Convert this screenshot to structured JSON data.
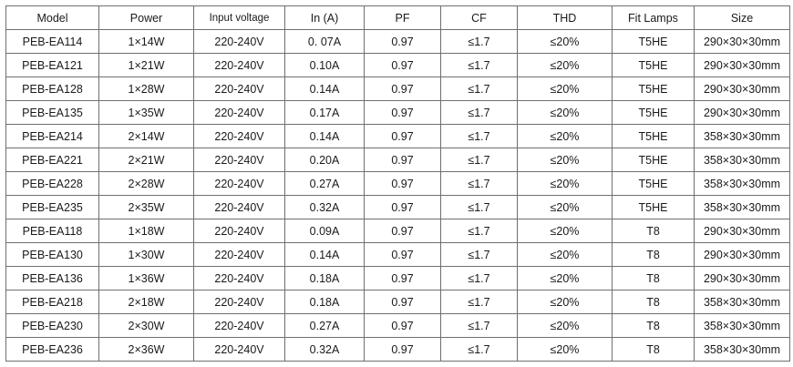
{
  "table": {
    "headers": [
      "Model",
      "Power",
      "Input voltage",
      "In (A)",
      "PF",
      "CF",
      "THD",
      "Fit Lamps",
      "Size"
    ],
    "rows": [
      [
        "PEB-EA114",
        "1×14W",
        "220-240V",
        "0. 07A",
        "0.97",
        "≤1.7",
        "≤20%",
        "T5HE",
        "290×30×30mm"
      ],
      [
        "PEB-EA121",
        "1×21W",
        "220-240V",
        "0.10A",
        "0.97",
        "≤1.7",
        "≤20%",
        "T5HE",
        "290×30×30mm"
      ],
      [
        "PEB-EA128",
        "1×28W",
        "220-240V",
        "0.14A",
        "0.97",
        "≤1.7",
        "≤20%",
        "T5HE",
        "290×30×30mm"
      ],
      [
        "PEB-EA135",
        "1×35W",
        "220-240V",
        "0.17A",
        "0.97",
        "≤1.7",
        "≤20%",
        "T5HE",
        "290×30×30mm"
      ],
      [
        "PEB-EA214",
        "2×14W",
        "220-240V",
        "0.14A",
        "0.97",
        "≤1.7",
        "≤20%",
        "T5HE",
        "358×30×30mm"
      ],
      [
        "PEB-EA221",
        "2×21W",
        "220-240V",
        "0.20A",
        "0.97",
        "≤1.7",
        "≤20%",
        "T5HE",
        "358×30×30mm"
      ],
      [
        "PEB-EA228",
        "2×28W",
        "220-240V",
        "0.27A",
        "0.97",
        "≤1.7",
        "≤20%",
        "T5HE",
        "358×30×30mm"
      ],
      [
        "PEB-EA235",
        "2×35W",
        "220-240V",
        "0.32A",
        "0.97",
        "≤1.7",
        "≤20%",
        "T5HE",
        "358×30×30mm"
      ],
      [
        "PEB-EA118",
        "1×18W",
        "220-240V",
        "0.09A",
        "0.97",
        "≤1.7",
        "≤20%",
        "T8",
        "290×30×30mm"
      ],
      [
        "PEB-EA130",
        "1×30W",
        "220-240V",
        "0.14A",
        "0.97",
        "≤1.7",
        "≤20%",
        "T8",
        "290×30×30mm"
      ],
      [
        "PEB-EA136",
        "1×36W",
        "220-240V",
        "0.18A",
        "0.97",
        "≤1.7",
        "≤20%",
        "T8",
        "290×30×30mm"
      ],
      [
        "PEB-EA218",
        "2×18W",
        "220-240V",
        "0.18A",
        "0.97",
        "≤1.7",
        "≤20%",
        "T8",
        "358×30×30mm"
      ],
      [
        "PEB-EA230",
        "2×30W",
        "220-240V",
        "0.27A",
        "0.97",
        "≤1.7",
        "≤20%",
        "T8",
        "358×30×30mm"
      ],
      [
        "PEB-EA236",
        "2×36W",
        "220-240V",
        "0.32A",
        "0.97",
        "≤1.7",
        "≤20%",
        "T8",
        "358×30×30mm"
      ]
    ]
  }
}
